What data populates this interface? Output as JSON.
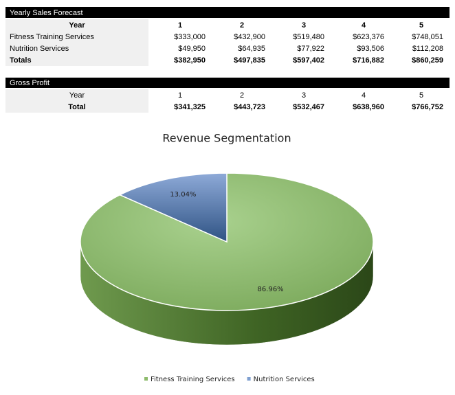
{
  "sales_table": {
    "title": "Yearly Sales Forecast",
    "header": [
      "Year",
      "1",
      "2",
      "3",
      "4",
      "5"
    ],
    "rows": [
      [
        "Fitness Training Services",
        "$333,000",
        "$432,900",
        "$519,480",
        "$623,376",
        "$748,051"
      ],
      [
        "Nutrition Services",
        "$49,950",
        "$64,935",
        "$77,922",
        "$93,506",
        "$112,208"
      ],
      [
        "Totals",
        "$382,950",
        "$497,835",
        "$597,402",
        "$716,882",
        "$860,259"
      ]
    ]
  },
  "gross_profit_table": {
    "title": "Gross Profit",
    "rows": [
      [
        "Year",
        "1",
        "2",
        "3",
        "4",
        "5"
      ],
      [
        "Total",
        "$341,325",
        "$443,723",
        "$532,467",
        "$638,960",
        "$766,752"
      ]
    ]
  },
  "chart_data": {
    "type": "pie",
    "title": "Revenue Segmentation",
    "categories": [
      "Fitness Training Services",
      "Nutrition Services"
    ],
    "values": [
      86.96,
      13.04
    ],
    "value_labels": [
      "86.96%",
      "13.04%"
    ],
    "colors": [
      "#8dbb6c",
      "#7f9fd0"
    ],
    "side_colors": [
      "#4f7a30",
      "#3c5d8e"
    ],
    "legend": "bottom"
  }
}
